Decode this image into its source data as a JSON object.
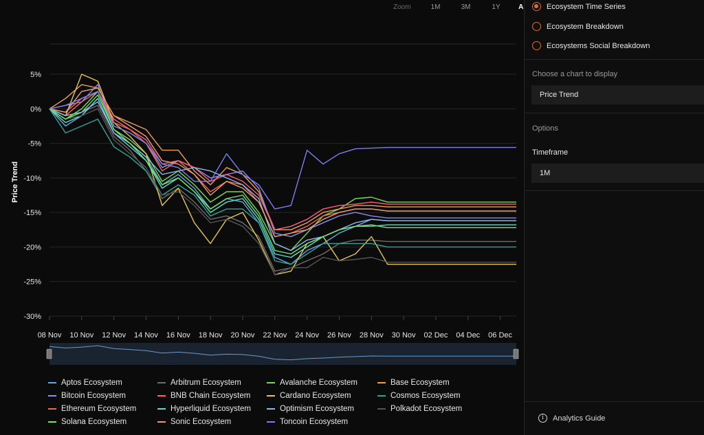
{
  "zoom": {
    "label": "Zoom",
    "options": [
      "1M",
      "3M",
      "1Y",
      "ALL"
    ],
    "active": "ALL"
  },
  "sidebar": {
    "chart_types": [
      {
        "label": "Ecosystem Time Series",
        "checked": true
      },
      {
        "label": "Ecosystem Breakdown",
        "checked": false
      },
      {
        "label": "Ecosystems Social Breakdown",
        "checked": false
      }
    ],
    "choose_label": "Choose a chart to display",
    "choose_value": "Price Trend",
    "options_label": "Options",
    "timeframe_label": "Timeframe",
    "timeframe_value": "1M",
    "guide_label": "Analytics Guide",
    "accent": "#e06d2c"
  },
  "chart_data": {
    "type": "line",
    "ylabel": "Price Trend",
    "xlabel": "",
    "ylim": [
      -30,
      5
    ],
    "yticks": [
      5,
      0,
      -5,
      -10,
      -15,
      -20,
      -25,
      -30
    ],
    "ytick_labels": [
      "5%",
      "0%",
      "-5%",
      "-10%",
      "-15%",
      "-20%",
      "-25%",
      "-30%"
    ],
    "xdomain": [
      "2024-11-08",
      "2024-12-07"
    ],
    "xtick_labels": [
      "08 Nov",
      "10 Nov",
      "12 Nov",
      "14 Nov",
      "16 Nov",
      "18 Nov",
      "20 Nov",
      "22 Nov",
      "24 Nov",
      "26 Nov",
      "28 Nov",
      "30 Nov",
      "02 Dec",
      "04 Dec",
      "06 Dec"
    ],
    "grid": true,
    "legend_position": "bottom",
    "x": [
      "2024-11-08",
      "2024-11-09",
      "2024-11-10",
      "2024-11-11",
      "2024-11-12",
      "2024-11-13",
      "2024-11-14",
      "2024-11-15",
      "2024-11-16",
      "2024-11-17",
      "2024-11-18",
      "2024-11-19",
      "2024-11-20",
      "2024-11-21",
      "2024-11-22",
      "2024-11-23",
      "2024-11-24",
      "2024-11-25",
      "2024-11-26",
      "2024-11-27",
      "2024-11-28",
      "2024-11-29",
      "2024-12-07"
    ],
    "series": [
      {
        "name": "Aptos Ecosystem",
        "color": "#6aa8e0",
        "values": [
          0,
          -2.5,
          -1.0,
          1.5,
          -3.5,
          -5.0,
          -7.0,
          -11.0,
          -9.5,
          -11.5,
          -14.5,
          -13.0,
          -13.5,
          -16.5,
          -21.5,
          -22.5,
          -20.5,
          -19.5,
          -18.0,
          -17.0,
          -16.0,
          -16.2,
          -16.2
        ]
      },
      {
        "name": "Arbitrum Ecosystem",
        "color": "#6e6e6e",
        "values": [
          0,
          -1.5,
          -0.5,
          0.5,
          -4.0,
          -6.0,
          -9.0,
          -13.0,
          -11.5,
          -13.5,
          -16.0,
          -15.5,
          -16.5,
          -18.5,
          -23.5,
          -23.0,
          -22.0,
          -21.0,
          -19.5,
          -19.0,
          -19.0,
          -19.2,
          -19.2
        ]
      },
      {
        "name": "Avalanche Ecosystem",
        "color": "#7ed957",
        "values": [
          0,
          -1.5,
          -0.5,
          2.0,
          -3.0,
          -4.5,
          -6.5,
          -10.5,
          -9.0,
          -11.0,
          -13.5,
          -12.0,
          -12.0,
          -15.0,
          -19.5,
          -20.5,
          -18.0,
          -15.5,
          -14.5,
          -13.0,
          -12.8,
          -13.5,
          -13.5
        ]
      },
      {
        "name": "Base Ecosystem",
        "color": "#f0a050",
        "values": [
          0,
          1.5,
          3.5,
          3.0,
          -1.0,
          -2.0,
          -3.0,
          -6.0,
          -6.0,
          -9.0,
          -11.0,
          -8.5,
          -9.5,
          -12.0,
          -17.5,
          -17.5,
          -16.5,
          -15.0,
          -14.5,
          -14.0,
          -14.0,
          -14.2,
          -14.2
        ]
      },
      {
        "name": "Bitcoin Ecosystem",
        "color": "#8b8fe8",
        "values": [
          0,
          0.5,
          1.0,
          3.5,
          -2.5,
          -3.5,
          -5.0,
          -8.5,
          -7.5,
          -8.5,
          -10.0,
          -9.5,
          -9.0,
          -11.5,
          -18.0,
          -18.5,
          -17.5,
          -16.5,
          -15.5,
          -15.0,
          -15.5,
          -15.8,
          -15.8
        ]
      },
      {
        "name": "BNB Chain Ecosystem",
        "color": "#ff5f7a",
        "values": [
          0,
          -0.5,
          1.5,
          2.5,
          -1.5,
          -3.0,
          -4.5,
          -8.0,
          -7.5,
          -8.5,
          -10.5,
          -9.5,
          -10.5,
          -12.5,
          -17.5,
          -17.0,
          -16.0,
          -14.5,
          -14.0,
          -13.8,
          -13.5,
          -13.8,
          -13.8
        ]
      },
      {
        "name": "Cardano Ecosystem",
        "color": "#e5c84a",
        "values": [
          0,
          -1.0,
          5.0,
          4.0,
          -2.0,
          -4.0,
          -6.5,
          -14.0,
          -11.5,
          -16.5,
          -19.5,
          -16.0,
          -15.0,
          -19.0,
          -24.0,
          -23.5,
          -19.5,
          -18.5,
          -22.0,
          -21.0,
          -18.5,
          -22.5,
          -22.5
        ]
      },
      {
        "name": "Cosmos Ecosystem",
        "color": "#2fa59a",
        "values": [
          0,
          -3.5,
          -2.5,
          -1.5,
          -5.5,
          -7.0,
          -9.0,
          -12.5,
          -11.0,
          -12.5,
          -15.5,
          -14.5,
          -14.5,
          -16.5,
          -22.0,
          -22.5,
          -21.0,
          -19.5,
          -19.5,
          -19.5,
          -19.5,
          -20.0,
          -20.0
        ]
      },
      {
        "name": "Ethereum Ecosystem",
        "color": "#f36a4f",
        "values": [
          0,
          -1.0,
          1.0,
          2.5,
          -2.0,
          -3.0,
          -5.0,
          -9.0,
          -7.5,
          -9.5,
          -12.0,
          -10.5,
          -11.0,
          -13.5,
          -18.5,
          -18.0,
          -17.0,
          -15.5,
          -15.0,
          -14.5,
          -14.5,
          -14.8,
          -14.8
        ]
      },
      {
        "name": "Hyperliquid Ecosystem",
        "color": "#5be0c8",
        "values": [
          0,
          -2.0,
          -1.0,
          1.5,
          -3.5,
          -5.5,
          -7.5,
          -11.5,
          -10.0,
          -12.0,
          -15.0,
          -13.5,
          -13.0,
          -16.0,
          -21.0,
          -21.5,
          -20.0,
          -18.5,
          -17.5,
          -17.0,
          -17.0,
          -16.8,
          -16.8
        ]
      },
      {
        "name": "Optimism Ecosystem",
        "color": "#8fb8f0",
        "values": [
          0,
          -1.0,
          -0.5,
          1.0,
          -3.5,
          -5.0,
          -7.0,
          -9.5,
          -9.0,
          -8.5,
          -9.0,
          -10.0,
          -11.0,
          -13.0,
          -19.5,
          -20.5,
          -19.0,
          -18.5,
          -17.5,
          -16.5,
          -16.0,
          -16.2,
          -16.2
        ]
      },
      {
        "name": "Polkadot Ecosystem",
        "color": "#555555",
        "values": [
          0,
          -1.5,
          -1.0,
          0.0,
          -4.5,
          -6.5,
          -8.5,
          -12.5,
          -12.0,
          -14.0,
          -16.5,
          -16.0,
          -17.0,
          -19.5,
          -24.0,
          -23.0,
          -23.0,
          -21.5,
          -22.0,
          -21.8,
          -21.5,
          -22.2,
          -22.2
        ]
      },
      {
        "name": "Solana Ecosystem",
        "color": "#6ee86e",
        "values": [
          0,
          -1.5,
          0.0,
          2.5,
          -3.0,
          -5.0,
          -7.5,
          -11.0,
          -10.0,
          -12.0,
          -14.5,
          -13.0,
          -12.5,
          -15.5,
          -20.5,
          -21.0,
          -19.5,
          -18.5,
          -17.5,
          -17.0,
          -16.8,
          -17.2,
          -17.2
        ]
      },
      {
        "name": "Sonic Ecosystem",
        "color": "#e8a070",
        "values": [
          0,
          -0.5,
          2.5,
          3.0,
          -1.0,
          -2.5,
          -4.0,
          -7.5,
          -8.0,
          -9.5,
          -12.5,
          -10.5,
          -11.5,
          -13.5,
          -18.5,
          -18.0,
          -17.5,
          -16.0,
          -15.0,
          -14.5,
          -14.5,
          -14.8,
          -14.8
        ]
      },
      {
        "name": "Toncoin Ecosystem",
        "color": "#7b7ff0",
        "values": [
          0,
          0.5,
          1.5,
          2.5,
          -2.5,
          -3.5,
          -5.0,
          -8.0,
          -8.5,
          -10.5,
          -10.5,
          -6.5,
          -9.5,
          -11.0,
          -14.5,
          -14.0,
          -6.0,
          -8.0,
          -6.5,
          -5.8,
          -5.7,
          -5.6,
          -5.6
        ]
      }
    ],
    "navigator": {
      "series": "Aptos Ecosystem"
    }
  }
}
